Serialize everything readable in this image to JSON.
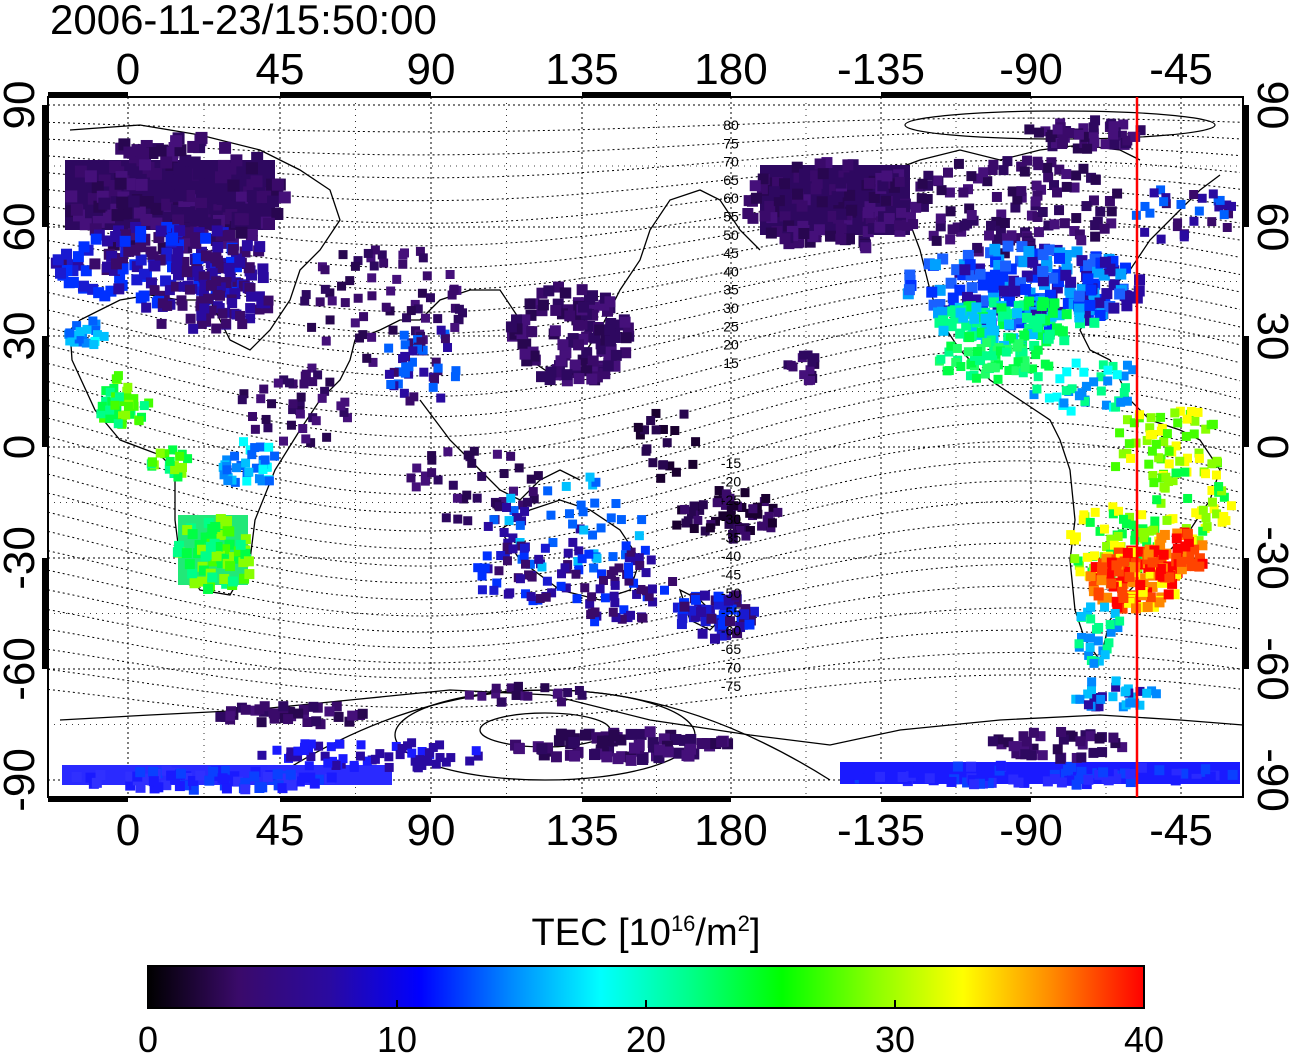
{
  "timestamp": "2006-11-23/15:50:00",
  "top_lon_ticks": [
    "0",
    "45",
    "90",
    "135",
    "180",
    "-135",
    "-90",
    "-45"
  ],
  "bottom_lon_ticks": [
    "0",
    "45",
    "90",
    "135",
    "180",
    "-135",
    "-90",
    "-45"
  ],
  "left_lat_ticks": [
    "90",
    "60",
    "30",
    "0",
    "-30",
    "-60",
    "-90"
  ],
  "right_lat_ticks": [
    "90",
    "60",
    "30",
    "0",
    "-30",
    "-60",
    "-90"
  ],
  "contour_labels_north": [
    "80",
    "75",
    "70",
    "65",
    "60",
    "55",
    "50",
    "45",
    "40",
    "35",
    "30",
    "25",
    "20",
    "15"
  ],
  "contour_labels_south": [
    "-15",
    "-20",
    "-25",
    "-30",
    "-35",
    "-40",
    "-45",
    "-50",
    "-55",
    "-60",
    "-65",
    "-70",
    "-75"
  ],
  "colorbar": {
    "title_prefix": "TEC  [10",
    "title_exp1": "16",
    "title_mid": "/m",
    "title_exp2": "2",
    "title_suffix": "]",
    "tick_labels": [
      "0",
      "10",
      "20",
      "30",
      "40"
    ],
    "range": [
      0,
      40
    ],
    "colors": [
      "#000000",
      "#3a0a6a",
      "#2a0aa0",
      "#0000ff",
      "#0088ff",
      "#00ffff",
      "#00ff88",
      "#00ff00",
      "#88ff00",
      "#ffff00",
      "#ff8800",
      "#ff0000"
    ]
  },
  "overlay_line": {
    "color": "#ff0000"
  }
}
